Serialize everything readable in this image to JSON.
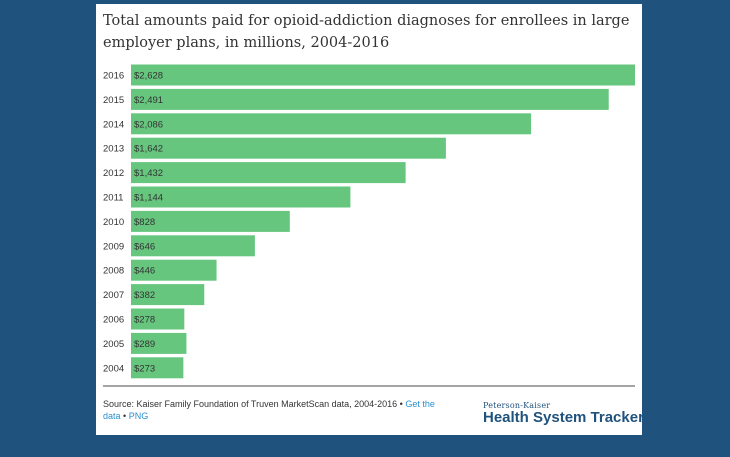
{
  "colors": {
    "background": "#1f527d",
    "card": "#ffffff",
    "bar": "#66c67e",
    "text": "#333333",
    "link": "#2a8fce",
    "brand": "#1f527d"
  },
  "chart_data": {
    "type": "bar",
    "orientation": "horizontal",
    "title": "Total amounts paid for opioid-addiction diagnoses for enrollees in large employer plans, in millions, 2004-2016",
    "categories": [
      "2016",
      "2015",
      "2014",
      "2013",
      "2012",
      "2011",
      "2010",
      "2009",
      "2008",
      "2007",
      "2006",
      "2005",
      "2004"
    ],
    "values": [
      2628,
      2491,
      2086,
      1642,
      1432,
      1144,
      828,
      646,
      446,
      382,
      278,
      289,
      273
    ],
    "data_labels": [
      "$2,628",
      "$2,491",
      "$2,086",
      "$1,642",
      "$1,432",
      "$1,144",
      "$828",
      "$646",
      "$446",
      "$382",
      "$278",
      "$289",
      "$273"
    ],
    "xlim": [
      0,
      2628
    ],
    "grid": false,
    "legend": "none"
  },
  "source": {
    "text": "Source: Kaiser Family Foundation of Truven MarketScan data, 2004-2016 • ",
    "link_data": "Get the data",
    "separator": " • ",
    "link_png": "PNG"
  },
  "logo": {
    "subtitle": "Peterson-Kaiser",
    "name": "Health System Tracker"
  }
}
